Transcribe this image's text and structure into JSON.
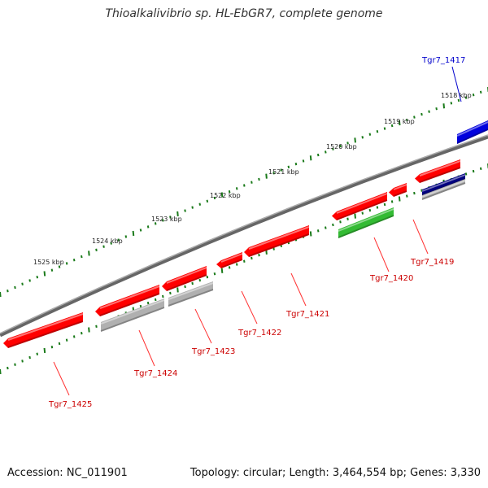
{
  "title": "Thioalkalivibrio sp. HL-EbGR7, complete genome",
  "footer": {
    "accession": "Accession: NC_011901",
    "summary": "Topology: circular; Length: 3,464,554 bp; Genes: 3,330"
  },
  "colors": {
    "forward": "#ff0000",
    "reverse": "#ff0000",
    "backbone": "#777777",
    "ruler_tick": "#1a7a1a",
    "highlight_blue": "#0000dd",
    "rna_green": "#33bb33",
    "pseudo_gray": "#b0b0b0",
    "navy": "#000080",
    "label_red": "#cc0000",
    "label_blue": "#0000cc"
  },
  "ruler_labels": [
    "1518 kbp",
    "1519 kbp",
    "1520 kbp",
    "1521 kbp",
    "1522 kbp",
    "1523 kbp",
    "1524 kbp",
    "1525 kbp"
  ],
  "gene_labels": [
    {
      "text": "Tgr7_1417",
      "color": "blue"
    },
    {
      "text": "Tgr7_1419",
      "color": "red"
    },
    {
      "text": "Tgr7_1420",
      "color": "red"
    },
    {
      "text": "Tgr7_1421",
      "color": "red"
    },
    {
      "text": "Tgr7_1422",
      "color": "red"
    },
    {
      "text": "Tgr7_1423",
      "color": "red"
    },
    {
      "text": "Tgr7_1424",
      "color": "red"
    },
    {
      "text": "Tgr7_1425",
      "color": "red"
    }
  ]
}
